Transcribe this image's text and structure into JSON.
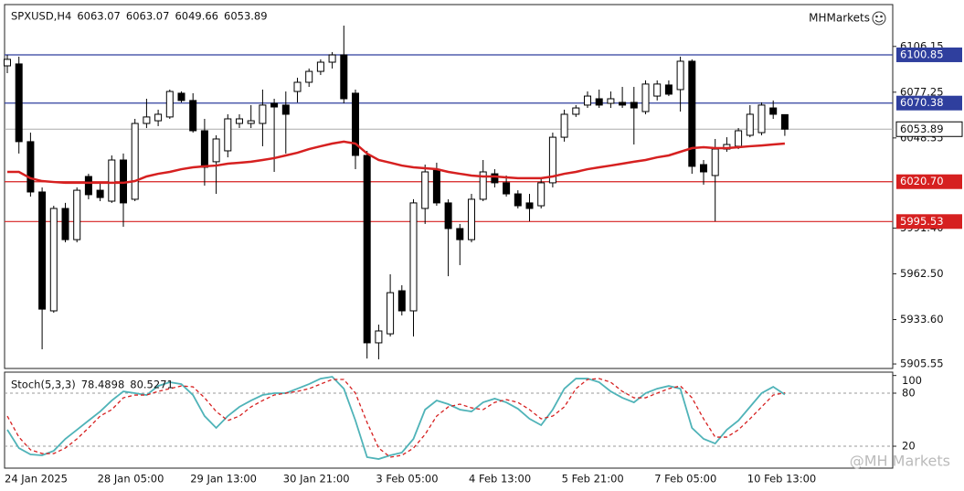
{
  "chart_data": [
    {
      "type": "candlestick",
      "symbol": "SPXUSD,H4",
      "brand": "MHMarkets",
      "watermark": "@MH Markets",
      "categories": [
        "24 Jan 2025",
        null,
        null,
        null,
        null,
        null,
        null,
        null,
        "28 Jan 05:00",
        null,
        null,
        null,
        null,
        null,
        null,
        null,
        "29 Jan 13:00",
        null,
        null,
        null,
        null,
        null,
        null,
        null,
        "30 Jan 21:00",
        null,
        null,
        null,
        null,
        null,
        null,
        null,
        "3 Feb 05:00",
        null,
        null,
        null,
        null,
        null,
        null,
        null,
        "4 Feb 13:00",
        null,
        null,
        null,
        null,
        null,
        null,
        null,
        "5 Feb 21:00",
        null,
        null,
        null,
        null,
        null,
        null,
        null,
        "7 Feb 05:00",
        null,
        null,
        null,
        null,
        null,
        null,
        null,
        "10 Feb 13:00",
        null,
        null,
        null
      ],
      "open": [
        6093.9,
        6095.1,
        6046.0,
        6014.2,
        5939.1,
        6003.8,
        5984.1,
        6024.0,
        6015.3,
        6008.4,
        6034.4,
        6009.6,
        6057.5,
        6059.2,
        6061.6,
        6076.6,
        6072.0,
        6052.9,
        6033.3,
        6040.2,
        6057.5,
        6057.5,
        6057.5,
        6070.2,
        6069.1,
        6077.7,
        6083.5,
        6090.4,
        6096.2,
        6100.8,
        6076.6,
        6037.3,
        5918.9,
        5924.6,
        5951.8,
        5939.1,
        6003.8,
        6028.6,
        6007.3,
        5991.1,
        5984.1,
        6009.6,
        6025.7,
        6020.0,
        6013.0,
        6007.3,
        6005.5,
        6020.0,
        6048.8,
        6063.3,
        6069.1,
        6073.1,
        6070.2,
        6070.8,
        6070.8,
        6065.0,
        6074.8,
        6081.8,
        6078.9,
        6096.8,
        6031.5,
        6024.6,
        6041.3,
        6043.1,
        6050.0,
        6051.7,
        6067.3,
        6063.07
      ],
      "high": [
        6100.8,
        6099.7,
        6051.7,
        6017.1,
        6005.5,
        6007.3,
        6017.1,
        6025.7,
        6020.0,
        6037.3,
        6038.5,
        6060.4,
        6073.1,
        6066.2,
        6078.9,
        6077.7,
        6076.6,
        6060.4,
        6050.0,
        6063.3,
        6063.3,
        6069.1,
        6078.9,
        6073.1,
        6077.7,
        6086.4,
        6092.2,
        6098.0,
        6102.6,
        6119.3,
        6078.9,
        6040.2,
        5930.4,
        5962.2,
        5955.3,
        6009.6,
        6031.5,
        6032.7,
        6009.6,
        5994.0,
        6013.0,
        6034.4,
        6028.6,
        6024.6,
        6015.3,
        6013.0,
        6022.9,
        6051.7,
        6066.2,
        6069.1,
        6077.7,
        6078.9,
        6077.7,
        6080.6,
        6080.6,
        6084.7,
        6084.7,
        6084.7,
        6099.7,
        6098.0,
        6034.4,
        6047.7,
        6048.8,
        6054.6,
        6069.1,
        6070.8,
        6072.0,
        6063.07
      ],
      "low": [
        6089.3,
        6038.5,
        6011.3,
        5914.8,
        5937.9,
        5982.4,
        5982.4,
        6009.6,
        6008.4,
        6007.3,
        5992.2,
        6008.4,
        6054.6,
        6055.8,
        6060.4,
        6070.8,
        6051.7,
        6018.2,
        6013.0,
        6036.1,
        6054.6,
        6054.6,
        6043.1,
        6026.9,
        6038.5,
        6070.8,
        6080.6,
        6088.1,
        6092.2,
        6070.2,
        6028.6,
        5909.0,
        5908.5,
        5922.9,
        5936.2,
        5922.9,
        5994.0,
        6005.5,
        5961.0,
        5968.0,
        5982.4,
        6008.4,
        6017.1,
        6011.3,
        6003.8,
        5995.7,
        6003.8,
        6017.1,
        6046.0,
        6061.6,
        6067.3,
        6067.3,
        6067.3,
        6067.3,
        6044.2,
        6063.3,
        6072.0,
        6074.8,
        6065.0,
        6025.7,
        6018.8,
        5995.7,
        6039.6,
        6041.3,
        6048.8,
        6050.0,
        6060.4,
        6049.66
      ],
      "close": [
        6098.0,
        6046.0,
        6014.2,
        5940.2,
        6003.8,
        5984.1,
        6015.3,
        6012.5,
        6010.7,
        6034.4,
        6007.3,
        6057.5,
        6061.6,
        6063.3,
        6077.7,
        6072.0,
        6052.9,
        6029.8,
        6047.7,
        6060.4,
        6060.4,
        6059.2,
        6069.1,
        6067.9,
        6063.3,
        6083.5,
        6090.4,
        6096.2,
        6100.8,
        6073.1,
        6037.3,
        5918.9,
        5926.4,
        5950.6,
        5939.1,
        6007.3,
        6026.9,
        6007.3,
        5991.1,
        5984.1,
        6009.6,
        6026.9,
        6020.0,
        6013.0,
        6005.5,
        6003.8,
        6020.0,
        6048.8,
        6063.3,
        6067.3,
        6074.8,
        6069.1,
        6073.1,
        6069.1,
        6067.3,
        6082.4,
        6082.4,
        6076.0,
        6096.8,
        6030.4,
        6026.9,
        6041.3,
        6044.2,
        6052.9,
        6063.3,
        6069.1,
        6063.3,
        6053.89
      ],
      "up_color": "#ffffff",
      "down_color": "#000000",
      "ma": {
        "color": "#d62020",
        "values": [
          6026.9,
          6026.9,
          6022.9,
          6021.1,
          6020.5,
          6020.0,
          6020.0,
          6020.0,
          6020.0,
          6020.0,
          6020.0,
          6021.1,
          6024.0,
          6025.7,
          6026.9,
          6028.6,
          6029.8,
          6030.4,
          6030.9,
          6032.1,
          6032.7,
          6033.3,
          6034.4,
          6035.6,
          6037.3,
          6039.0,
          6041.3,
          6043.1,
          6044.8,
          6046.0,
          6044.8,
          6038.5,
          6034.4,
          6032.7,
          6030.9,
          6029.8,
          6029.2,
          6028.6,
          6026.9,
          6025.7,
          6024.6,
          6024.0,
          6024.0,
          6023.4,
          6022.9,
          6022.9,
          6022.9,
          6024.0,
          6025.7,
          6026.9,
          6028.6,
          6029.8,
          6030.9,
          6032.1,
          6033.3,
          6034.4,
          6036.1,
          6037.3,
          6039.6,
          6041.9,
          6042.5,
          6041.9,
          6041.9,
          6042.5,
          6043.1,
          6043.6,
          6044.2,
          6044.8
        ]
      },
      "ylim": [
        5902.7,
        6132.6
      ],
      "yticks": [
        6106.15,
        6077.25,
        6048.35,
        {
          "value": 5991.4,
          "label": "5991.40"
        },
        {
          "value": 5962.5,
          "label": "5962.50"
        },
        {
          "value": 5933.6,
          "label": "5933.60"
        },
        5905.55
      ],
      "hlines": [
        {
          "value": 6100.85,
          "color": "#2f3f9e"
        },
        {
          "value": 6070.38,
          "color": "#2f3f9e"
        },
        {
          "value": {
            "value": 6020.7,
            "label": "6020.70"
          },
          "color": "#d62020"
        },
        {
          "value": 5995.53,
          "color": "#d62020"
        }
      ],
      "grid": false
    },
    {
      "type": "line",
      "title": "Stoch(5,3,3)",
      "series": [
        {
          "color": "#4fb3b8",
          "dash": false,
          "values": [
            38.6,
            17.9,
            10.7,
            9.7,
            14.8,
            28.3,
            38.6,
            49.0,
            59.3,
            71.7,
            82.0,
            80.0,
            77.9,
            88.2,
            92.4,
            90.3,
            77.9,
            54.1,
            40.7,
            54.1,
            64.5,
            71.7,
            77.9,
            80.0,
            80.0,
            85.1,
            90.3,
            96.5,
            98.6,
            85.1,
            49.0,
            7.6,
            5.5,
            9.7,
            12.8,
            28.3,
            61.4,
            71.7,
            67.6,
            61.4,
            59.3,
            69.6,
            73.8,
            69.6,
            62.4,
            51.0,
            43.8,
            61.4,
            85.1,
            96.5,
            96.5,
            92.4,
            82.0,
            74.8,
            69.6,
            80.0,
            85.1,
            88.2,
            85.1,
            40.7,
            28.3,
            23.1,
            38.6,
            49.0,
            64.5,
            80.0,
            87.2,
            78.4898
          ]
        },
        {
          "color": "#d62020",
          "dash": true,
          "values": [
            54.1,
            30.3,
            15.9,
            11.7,
            11.7,
            17.9,
            28.3,
            40.7,
            54.1,
            61.4,
            74.8,
            77.9,
            77.9,
            82.0,
            85.1,
            88.2,
            87.2,
            74.8,
            59.3,
            49.0,
            54.1,
            64.5,
            71.7,
            77.9,
            80.0,
            82.0,
            85.1,
            90.3,
            95.5,
            95.5,
            80.0,
            46.9,
            17.9,
            7.6,
            9.7,
            17.9,
            33.4,
            54.1,
            64.5,
            67.6,
            63.4,
            61.4,
            69.6,
            72.7,
            69.6,
            61.4,
            51.0,
            54.1,
            64.5,
            85.1,
            95.5,
            96.5,
            92.4,
            82.0,
            74.8,
            74.8,
            80.0,
            85.1,
            88.2,
            74.8,
            51.0,
            30.3,
            30.3,
            38.6,
            51.0,
            64.5,
            77.9,
            80.5271
          ]
        }
      ],
      "ylim": [
        -4.8,
        103.8
      ],
      "yticks": [
        100,
        80,
        20
      ],
      "levels": [
        80,
        20
      ]
    }
  ]
}
